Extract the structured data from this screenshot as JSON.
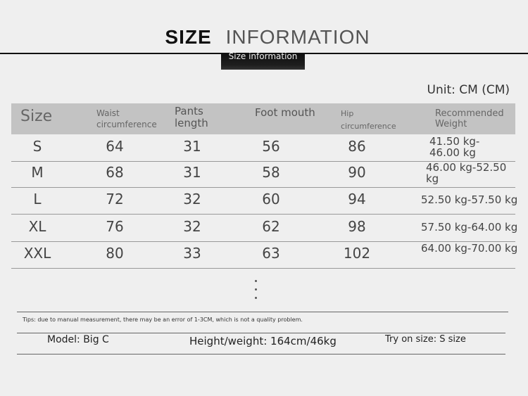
{
  "title": {
    "bold": "SIZE",
    "light": "INFORMATION",
    "subtitle": "Size information"
  },
  "unit": "Unit: CM (CM)",
  "headers": [
    "Size",
    "Waist circumference",
    "Pants length",
    "Foot mouth",
    "Hip circumference",
    "Recommended Weight"
  ],
  "rows": [
    {
      "size": "S",
      "waist": "64",
      "length": "31",
      "foot": "56",
      "hip": "86",
      "weight": "41.50 kg-46.00 kg"
    },
    {
      "size": "M",
      "waist": "68",
      "length": "31",
      "foot": "58",
      "hip": "90",
      "weight": "46.00 kg-52.50 kg"
    },
    {
      "size": "L",
      "waist": "72",
      "length": "32",
      "foot": "60",
      "hip": "94",
      "weight": "52.50 kg-57.50 kg"
    },
    {
      "size": "XL",
      "waist": "76",
      "length": "32",
      "foot": "62",
      "hip": "98",
      "weight": "57.50 kg-64.00 kg"
    },
    {
      "size": "XXL",
      "waist": "80",
      "length": "33",
      "foot": "63",
      "hip": "102",
      "weight": "64.00 kg-70.00 kg"
    }
  ],
  "tips": "Tips: due to manual measurement, there may be an error of 1-3CM, which is not a quality problem.",
  "model": {
    "name": "Model: Big C",
    "hw": "Height/weight: 164cm/46kg",
    "try": "Try on size: S size"
  }
}
